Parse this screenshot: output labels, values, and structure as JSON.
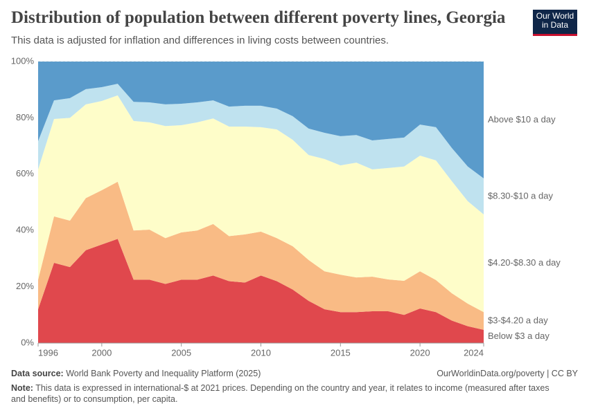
{
  "logo": [
    "Our World",
    "in Data"
  ],
  "chart_data": {
    "type": "stacked-area",
    "title": "Distribution of population between different poverty lines, Georgia",
    "subtitle": "This data is adjusted for inflation and differences in living costs between countries.",
    "source_label": "Data source:",
    "source": "World Bank Poverty and Inequality Platform (2025)",
    "url": "OurWorldinData.org/poverty | CC BY",
    "note_label": "Note:",
    "note": "This data is expressed in international-$ at 2021 prices. Depending on the country and year, it relates to income (measured after taxes and benefits) or to consumption, per capita.",
    "x": [
      1996,
      1997,
      1998,
      1999,
      2000,
      2001,
      2002,
      2003,
      2004,
      2005,
      2006,
      2007,
      2008,
      2009,
      2010,
      2011,
      2012,
      2013,
      2014,
      2015,
      2016,
      2017,
      2018,
      2019,
      2020,
      2021,
      2022,
      2023,
      2024
    ],
    "xlim": [
      1996,
      2024
    ],
    "xticks": [
      1996,
      2000,
      2005,
      2010,
      2015,
      2020,
      2024
    ],
    "ylim": [
      0,
      100
    ],
    "yticks": [
      {
        "value": 0,
        "label": "0%"
      },
      {
        "value": 20,
        "label": "20%"
      },
      {
        "value": 40,
        "label": "40%"
      },
      {
        "value": 60,
        "label": "60%"
      },
      {
        "value": 80,
        "label": "80%"
      },
      {
        "value": 100,
        "label": "100%"
      }
    ],
    "grid": true,
    "series": [
      {
        "name": "Below $3 a day",
        "color": "#e0484d",
        "values": [
          12,
          28.5,
          27,
          33,
          35,
          37,
          22.5,
          22.5,
          21,
          22.5,
          22.5,
          24,
          22,
          21.5,
          24,
          22,
          19,
          15,
          12,
          11,
          11,
          11.3,
          11.3,
          10,
          12.3,
          11,
          8,
          6,
          4.7
        ]
      },
      {
        "name": "$3-$4.20 a day",
        "color": "#f9bb85",
        "values": [
          10.5,
          16.5,
          16.5,
          18.5,
          19.3,
          20.3,
          17.5,
          17.8,
          16.3,
          16.8,
          17.5,
          18.3,
          16,
          17.1,
          15.6,
          15.3,
          15.4,
          14.5,
          13.5,
          13.3,
          12.3,
          12.3,
          11.3,
          12.1,
          13.2,
          11.4,
          9.7,
          8,
          6.3
        ]
      },
      {
        "name": "$4.20-$8.30 a day",
        "color": "#fefdc9",
        "values": [
          39.2,
          34.6,
          36.5,
          33.3,
          31.7,
          30.7,
          38.9,
          38.1,
          39.8,
          38.1,
          38.4,
          37.5,
          38.9,
          38.3,
          37.1,
          38.6,
          37.8,
          37.3,
          39.9,
          38.8,
          40.8,
          38.1,
          39.6,
          40.6,
          41.1,
          42.5,
          39.8,
          36.4,
          34.7
        ]
      },
      {
        "name": "$8.30-$10 a day",
        "color": "#bfe2ef",
        "values": [
          10,
          6.6,
          7,
          5.4,
          4.9,
          4.1,
          6.8,
          7.1,
          7.7,
          7.6,
          7.1,
          6.4,
          7.1,
          7.4,
          7.6,
          7.4,
          8.4,
          9.4,
          9.3,
          10.4,
          9.8,
          10.3,
          10.3,
          10.3,
          11,
          11.8,
          11.8,
          12.3,
          12.8
        ]
      },
      {
        "name": "Above $10 a day",
        "color": "#5a9bcb",
        "values": [
          28.3,
          13.8,
          13,
          9.8,
          9.1,
          7.9,
          14.3,
          14.5,
          15.2,
          15,
          14.5,
          13.8,
          16,
          15.7,
          15.7,
          16.7,
          19.4,
          23.8,
          25.3,
          26.5,
          26.1,
          28,
          27.5,
          27,
          22.4,
          23.3,
          30.7,
          37.3,
          41.5
        ]
      }
    ]
  }
}
